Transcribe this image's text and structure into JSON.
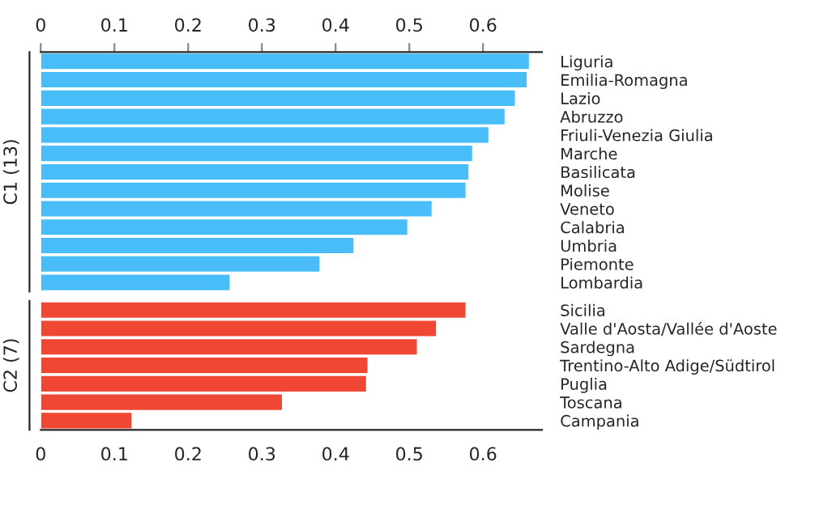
{
  "chart_data": [
    {
      "type": "bar",
      "orientation": "horizontal",
      "ylabel": "C1 (13)",
      "categories": [
        "Liguria",
        "Emilia-Romagna",
        "Lazio",
        "Abruzzo",
        "Friuli-Venezia Giulia",
        "Marche",
        "Basilicata",
        "Molise",
        "Veneto",
        "Calabria",
        "Umbria",
        "Piemonte",
        "Lombardia"
      ],
      "values": [
        0.663,
        0.66,
        0.644,
        0.63,
        0.608,
        0.586,
        0.581,
        0.577,
        0.531,
        0.498,
        0.425,
        0.379,
        0.257
      ],
      "color": "#48bdf8",
      "xlim": [
        0,
        0.68
      ],
      "xticks": [
        0,
        0.1,
        0.2,
        0.3,
        0.4,
        0.5,
        0.6
      ],
      "grid": false
    },
    {
      "type": "bar",
      "orientation": "horizontal",
      "ylabel": "C2 (7)",
      "categories": [
        "Sicilia",
        "Valle d'Aosta/Vallée d'Aoste",
        "Sardegna",
        "Trentino-Alto Adige/Südtirol",
        "Puglia",
        "Toscana",
        "Campania"
      ],
      "values": [
        0.577,
        0.537,
        0.511,
        0.444,
        0.442,
        0.328,
        0.124
      ],
      "color": "#ef4733",
      "xlim": [
        0,
        0.68
      ],
      "xticks": [
        0,
        0.1,
        0.2,
        0.3,
        0.4,
        0.5,
        0.6
      ],
      "grid": false
    }
  ]
}
